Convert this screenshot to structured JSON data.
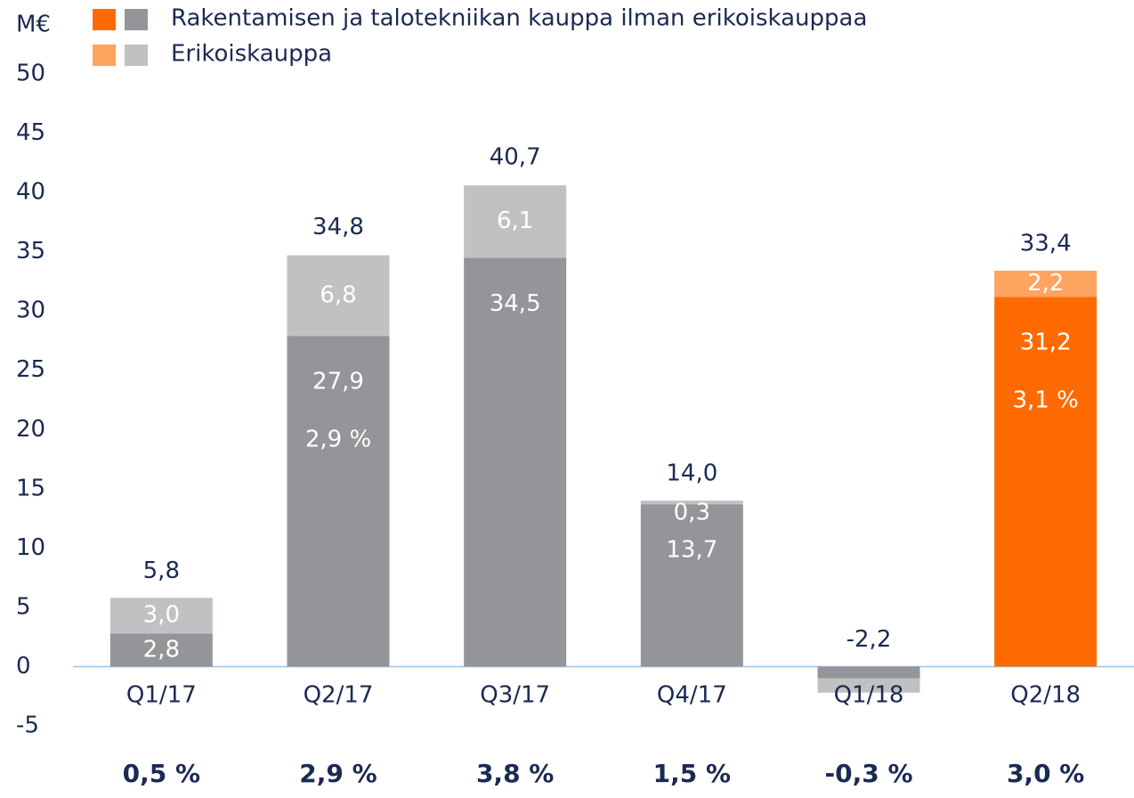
{
  "chart_data": {
    "type": "stacked_bar",
    "axis_label": "M€",
    "categories": [
      "Q1/17",
      "Q2/17",
      "Q3/17",
      "Q4/17",
      "Q1/18",
      "Q2/18"
    ],
    "series": [
      {
        "name": "Rakentamisen ja talotekniikan kauppa ilman erikoiskauppaa",
        "color": [
          "#939598",
          "#939598",
          "#939598",
          "#939598",
          "#939598",
          "#ff6a00"
        ],
        "values": [
          2.8,
          27.9,
          34.5,
          13.7,
          -1.0,
          31.2
        ],
        "value_labels": [
          "2,8",
          "27,9",
          "34,5",
          "13,7",
          null,
          "31,2"
        ]
      },
      {
        "name": "Erikoiskauppa",
        "color": [
          "#c0c1c3",
          "#c0c1c3",
          "#c0c1c3",
          "#c0c1c3",
          "#c0c1c3",
          "#ffa460"
        ],
        "values": [
          3.0,
          6.8,
          6.1,
          0.3,
          -1.2,
          2.2
        ],
        "value_labels": [
          "3,0",
          "6,8",
          "6,1",
          "0,3",
          null,
          "2,2"
        ]
      }
    ],
    "totals": [
      5.8,
      34.8,
      40.7,
      14.0,
      -2.2,
      33.4
    ],
    "total_labels": [
      "5,8",
      "34,8",
      "40,7",
      "14,0",
      "-2,2",
      "33,4"
    ],
    "inner_labels": [
      null,
      "2,9 %",
      null,
      null,
      null,
      "3,1 %"
    ],
    "growth_labels": [
      "0,5 %",
      "2,9 %",
      "3,8 %",
      "1,5 %",
      "-0,3 %",
      "3,0 %"
    ],
    "ylim": [
      -5,
      50
    ],
    "yticks": [
      -5,
      0,
      5,
      10,
      15,
      20,
      25,
      30,
      35,
      40,
      45,
      50
    ]
  }
}
